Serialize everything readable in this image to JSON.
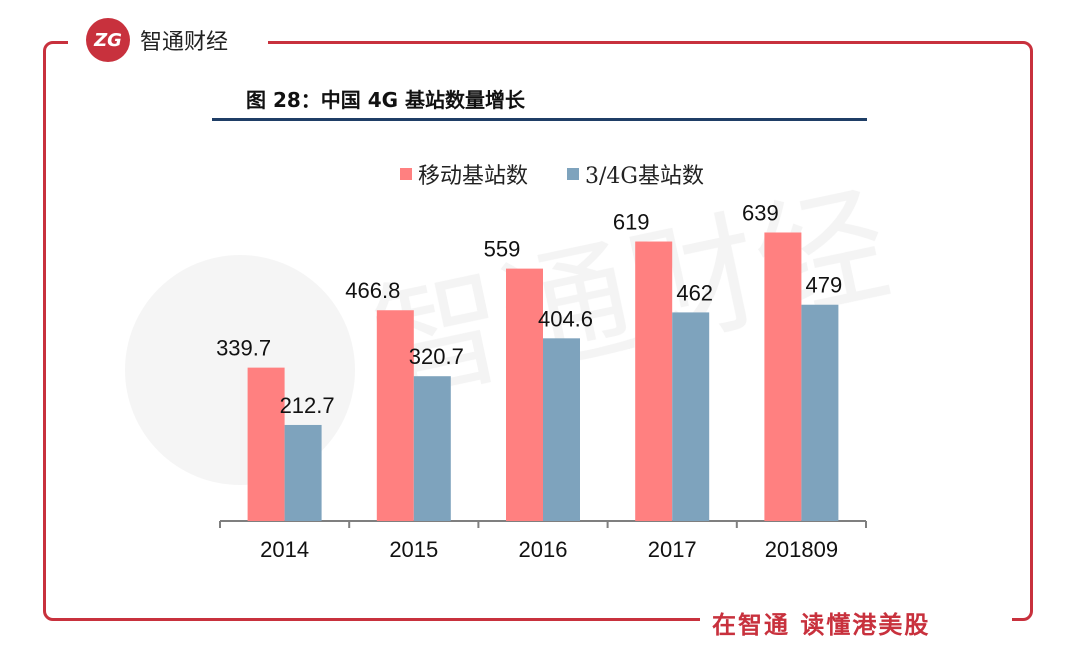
{
  "brand": {
    "logo_text": "ZG",
    "name": "智通财经"
  },
  "slogan": "在智通 读懂港美股",
  "figure": {
    "title": "图 28：中国 4G 基站数量增长"
  },
  "watermark": "智通财经",
  "colors": {
    "frame": "#c8313d",
    "series1": "#ff8080",
    "series2": "#7ea3bd",
    "rule": "#1f3e66"
  },
  "chart_data": {
    "type": "bar",
    "title": "图 28：中国 4G 基站数量增长",
    "categories": [
      "2014",
      "2015",
      "2016",
      "2017",
      "201809"
    ],
    "series": [
      {
        "name": "移动基站数",
        "values": [
          339.7,
          466.8,
          559,
          619,
          639
        ]
      },
      {
        "name": "3/4G基站数",
        "values": [
          212.7,
          320.7,
          404.6,
          462,
          479
        ]
      }
    ],
    "value_labels": [
      [
        "339.7",
        "466.8",
        "559",
        "619",
        "639"
      ],
      [
        "212.7",
        "320.7",
        "404.6",
        "462",
        "479"
      ]
    ],
    "xlabel": "",
    "ylabel": "",
    "ylim": [
      0,
      700
    ],
    "legend": "top-center",
    "grid": false
  }
}
